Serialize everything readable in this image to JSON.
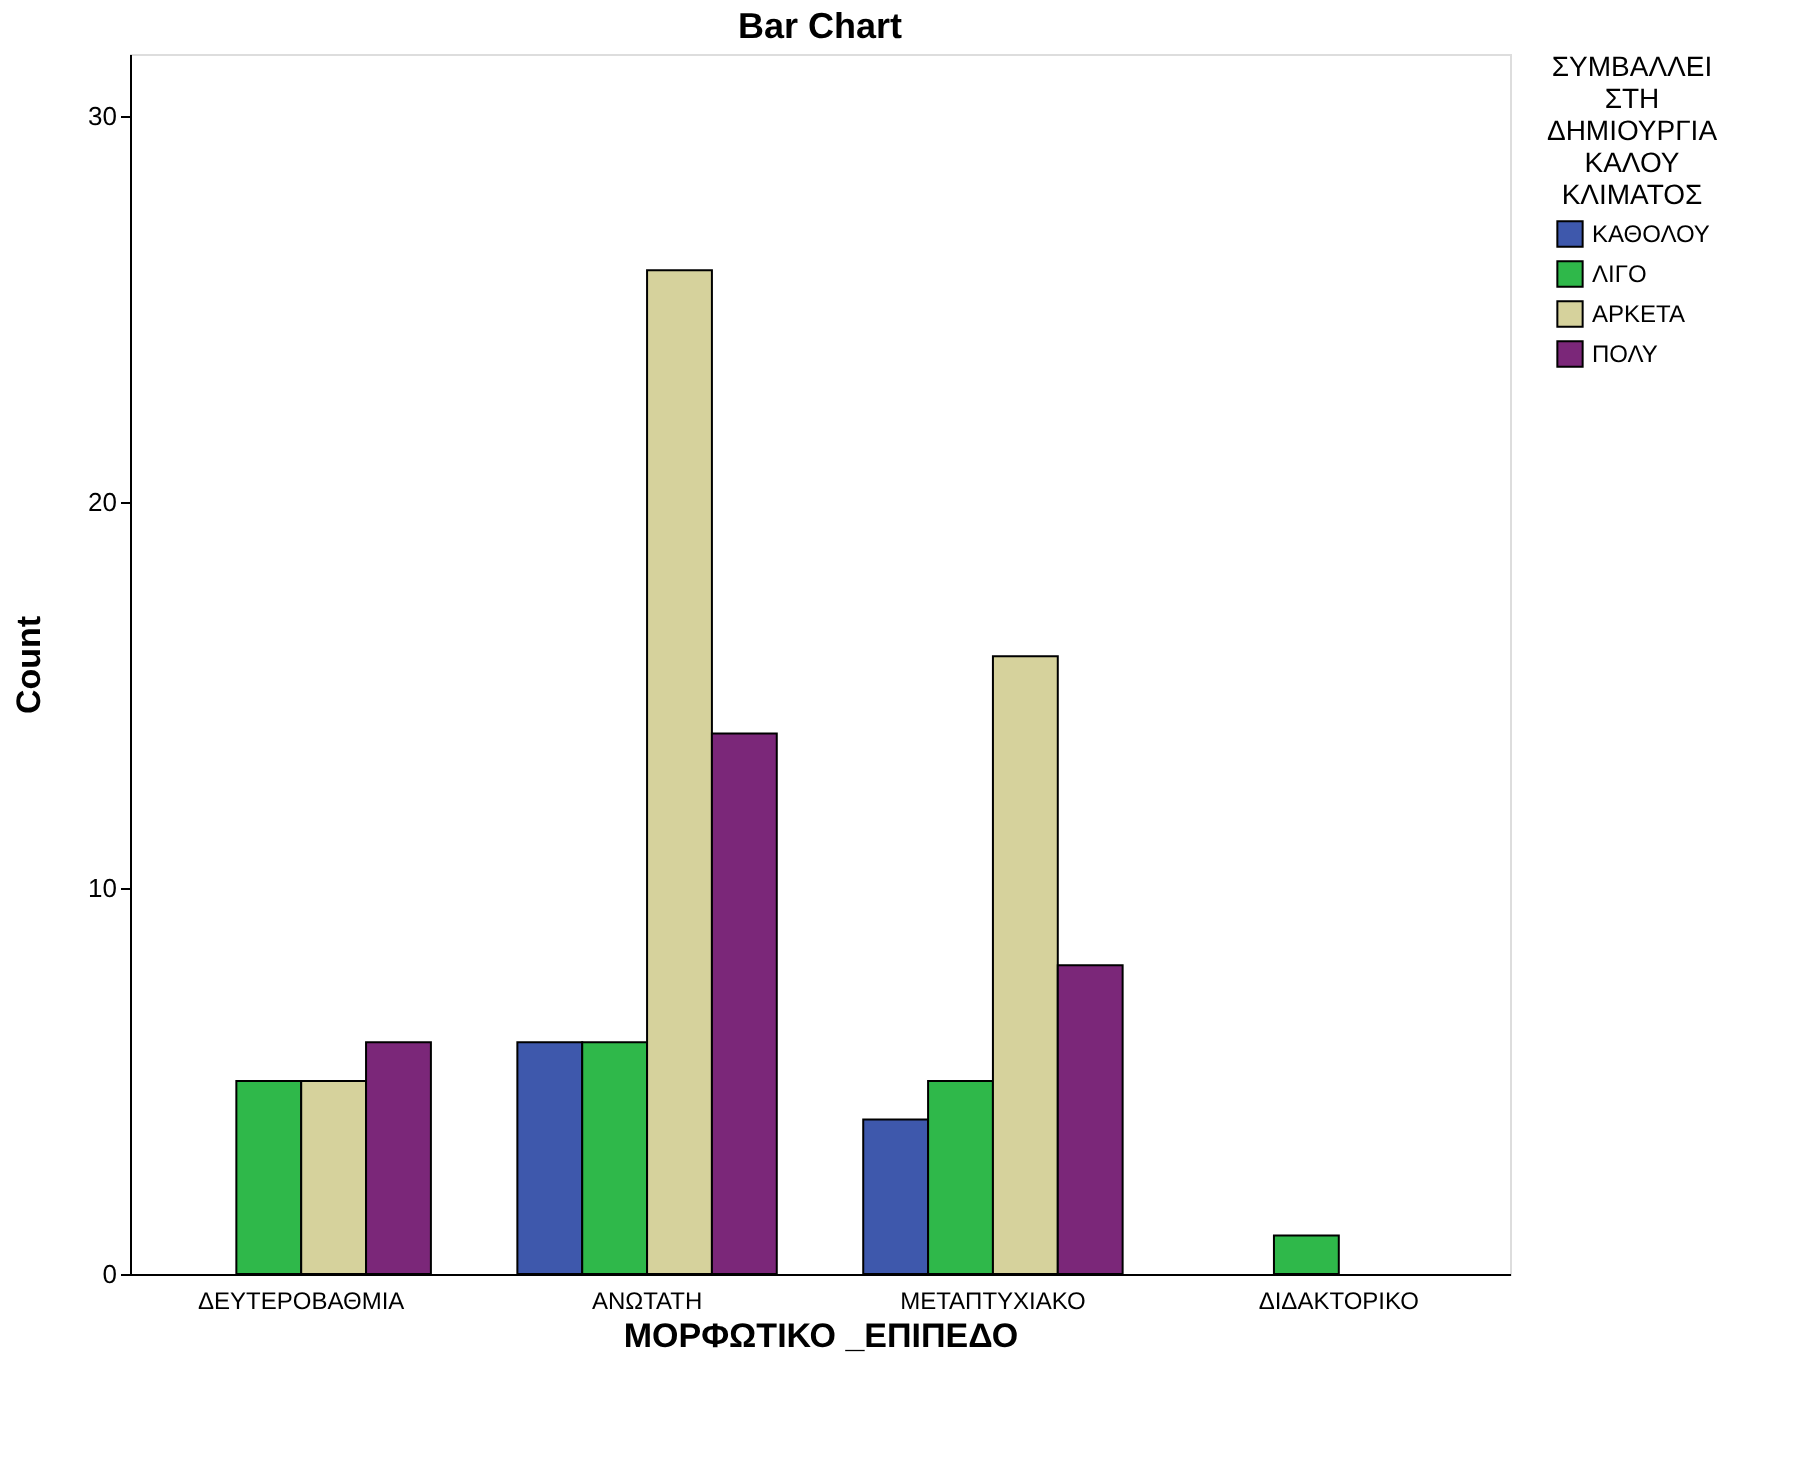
{
  "chart_data": {
    "type": "bar",
    "title": "Bar Chart",
    "xlabel": "ΜΟΡΦΩΤΙΚΟ _ΕΠΙΠΕΔΟ",
    "ylabel": "Count",
    "legend_title": "ΣΥΜΒΑΛΛΕΙ ΣΤΗ ΔΗΜΙΟΥΡΓΙΑ ΚΑΛΟΥ ΚΛΙΜΑΤΟΣ",
    "legend": "right",
    "categories": [
      "ΔΕΥΤΕΡΟΒΑΘΜΙΑ",
      "ΑΝΩΤΑΤΗ",
      "ΜΕΤΑΠΤΥΧΙΑΚΟ",
      "ΔΙΔΑΚΤΟΡΙΚΟ"
    ],
    "series": [
      {
        "name": "ΚΑΘΟΛΟΥ",
        "color": "#3e58ac",
        "values": [
          null,
          6,
          4,
          null
        ]
      },
      {
        "name": "ΛΙΓΟ",
        "color": "#2fb84a",
        "values": [
          5,
          6,
          5,
          1
        ]
      },
      {
        "name": "ΑΡΚΕΤΑ",
        "color": "#d6d29c",
        "values": [
          5,
          26,
          16,
          null
        ]
      },
      {
        "name": "ΠΟΛΥ",
        "color": "#7b2779",
        "values": [
          6,
          14,
          8,
          null
        ]
      }
    ],
    "ylim": [
      0,
      31.6
    ],
    "yticks": [
      0,
      10,
      20,
      30
    ],
    "grid": false
  }
}
